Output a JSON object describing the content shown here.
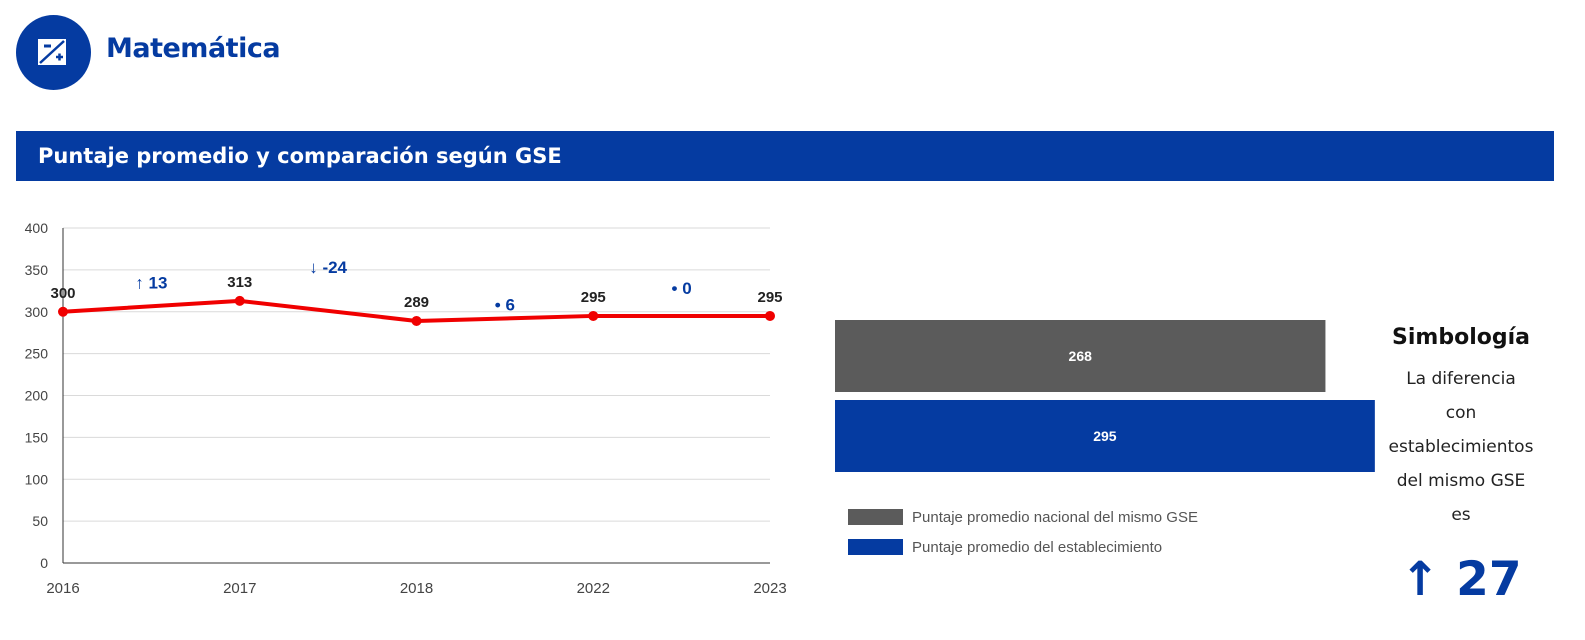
{
  "header": {
    "subject": "Matemática",
    "section_title": "Puntaje promedio y comparación según GSE"
  },
  "colors": {
    "brand_blue": "#053ba1",
    "line_red": "#f00000",
    "gray_bar": "#5b5b5b",
    "blue_bar": "#053ba1"
  },
  "chart_data": [
    {
      "type": "line",
      "title": "",
      "xlabel": "",
      "ylabel": "",
      "x": [
        "2016",
        "2017",
        "2018",
        "2022",
        "2023"
      ],
      "y_ticks": [
        "0",
        "50",
        "100",
        "150",
        "200",
        "250",
        "300",
        "350",
        "400"
      ],
      "ylim": [
        0,
        400
      ],
      "grid": true,
      "series": [
        {
          "values": [
            300,
            313,
            289,
            295,
            295
          ],
          "labels": [
            "300",
            "313",
            "289",
            "295",
            "295"
          ]
        }
      ],
      "differences": [
        {
          "symbol": "↑",
          "value": "13",
          "text": "↑ 13"
        },
        {
          "symbol": "↓",
          "value": "-24",
          "text": "↓ -24"
        },
        {
          "symbol": "•",
          "value": "6",
          "text": "• 6"
        },
        {
          "symbol": "•",
          "value": "0",
          "text": "• 0"
        }
      ]
    },
    {
      "type": "bar",
      "orientation": "horizontal",
      "categories": [
        "Puntaje promedio nacional del mismo GSE",
        "Puntaje promedio del establecimiento"
      ],
      "values": [
        268,
        295
      ],
      "labels": [
        "268",
        "295"
      ],
      "colors": [
        "#5b5b5b",
        "#053ba1"
      ],
      "legend": [
        "Puntaje promedio nacional del mismo GSE",
        "Puntaje promedio del establecimiento"
      ],
      "legend_position": "bottom-left"
    }
  ],
  "simbologia": {
    "title": "Simbología",
    "lines": [
      "La diferencia",
      "con",
      "establecimientos",
      "del mismo GSE",
      "es"
    ],
    "arrow": "↑",
    "value": "27"
  }
}
